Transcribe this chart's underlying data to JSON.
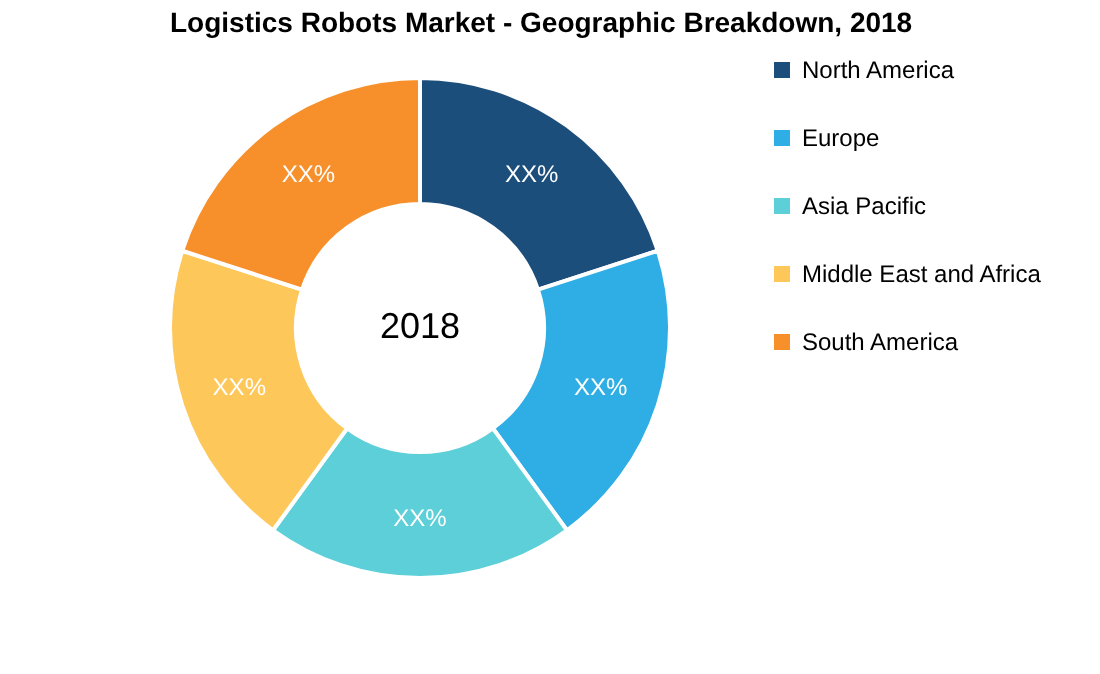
{
  "chart_data": {
    "type": "donut",
    "title": "Logistics Robots Market - Geographic Breakdown, 2018",
    "categories": [
      "North America",
      "Europe",
      "Asia Pacific",
      "Middle East and Africa",
      "South America"
    ],
    "values": [
      20,
      20,
      20,
      20,
      20
    ],
    "value_labels": [
      "XX%",
      "XX%",
      "XX%",
      "XX%",
      "XX%"
    ],
    "colors": [
      "#1c4e7c",
      "#2eaee4",
      "#5dcfd8",
      "#fec75a",
      "#f7902b"
    ],
    "annotations": [
      "2018"
    ],
    "legend": "right"
  }
}
